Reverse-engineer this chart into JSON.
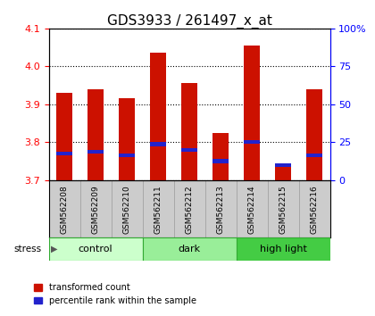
{
  "title": "GDS3933 / 261497_x_at",
  "samples": [
    "GSM562208",
    "GSM562209",
    "GSM562210",
    "GSM562211",
    "GSM562212",
    "GSM562213",
    "GSM562214",
    "GSM562215",
    "GSM562216"
  ],
  "red_values": [
    3.93,
    3.94,
    3.915,
    4.035,
    3.955,
    3.825,
    4.055,
    3.74,
    3.94
  ],
  "blue_values": [
    3.77,
    3.775,
    3.765,
    3.795,
    3.78,
    3.75,
    3.8,
    3.74,
    3.765
  ],
  "ylim_left": [
    3.7,
    4.1
  ],
  "ylim_right": [
    0,
    100
  ],
  "right_ticks": [
    0,
    25,
    50,
    75,
    100
  ],
  "right_tick_labels": [
    "0",
    "25",
    "50",
    "75",
    "100%"
  ],
  "left_ticks": [
    3.7,
    3.8,
    3.9,
    4.0,
    4.1
  ],
  "groups": [
    {
      "label": "control",
      "indices": [
        0,
        1,
        2
      ],
      "color": "#ccffcc"
    },
    {
      "label": "dark",
      "indices": [
        3,
        4,
        5
      ],
      "color": "#99ee99"
    },
    {
      "label": "high light",
      "indices": [
        6,
        7,
        8
      ],
      "color": "#44cc44"
    }
  ],
  "bar_width": 0.5,
  "blue_bar_height": 0.01,
  "red_color": "#cc1100",
  "blue_color": "#2222cc",
  "grid_color": "#000000",
  "bg_color": "#ffffff",
  "tick_area_color": "#cccccc",
  "stress_label": "stress",
  "legend_red": "transformed count",
  "legend_blue": "percentile rank within the sample",
  "title_fontsize": 11,
  "tick_fontsize": 8,
  "sample_fontsize": 6.5
}
